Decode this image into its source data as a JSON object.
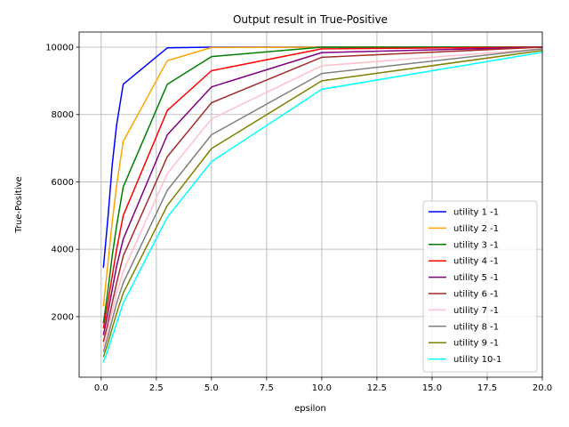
{
  "chart_data": {
    "type": "line",
    "title": "Output result in True-Positive",
    "xlabel": "epsilon",
    "ylabel": "True-Positive",
    "xlim": [
      -1.0,
      20.0
    ],
    "ylim": [
      200,
      10450
    ],
    "xticks": [
      0.0,
      2.5,
      5.0,
      7.5,
      10.0,
      12.5,
      15.0,
      17.5,
      20.0
    ],
    "xtick_labels": [
      "0.0",
      "2.5",
      "5.0",
      "7.5",
      "10.0",
      "12.5",
      "15.0",
      "17.5",
      "20.0"
    ],
    "yticks": [
      2000,
      4000,
      6000,
      8000,
      10000
    ],
    "ytick_labels": [
      "2000",
      "4000",
      "6000",
      "8000",
      "10000"
    ],
    "grid": true,
    "legend_position": "lower-right",
    "x": [
      0.1,
      0.3,
      0.5,
      0.7,
      1.0,
      3.0,
      5.0,
      10.0,
      20.0
    ],
    "series": [
      {
        "name": "utility 1 -1",
        "color": "#0000ff",
        "values": [
          3450,
          4900,
          6500,
          7700,
          8900,
          9980,
          10000,
          10000,
          10000
        ]
      },
      {
        "name": "utility 2 -1",
        "color": "#ffa500",
        "values": [
          2300,
          3550,
          4800,
          5900,
          7200,
          9600,
          9990,
          10000,
          10000
        ]
      },
      {
        "name": "utility 3 -1",
        "color": "#008000",
        "values": [
          1800,
          2750,
          3800,
          4700,
          5850,
          8900,
          9720,
          10000,
          10000
        ]
      },
      {
        "name": "utility 4 -1",
        "color": "#ff0000",
        "values": [
          1650,
          2400,
          3200,
          4000,
          5000,
          8120,
          9300,
          9950,
          10000
        ]
      },
      {
        "name": "utility 5 -1",
        "color": "#800080",
        "values": [
          1450,
          2100,
          2800,
          3500,
          4300,
          7400,
          8820,
          9840,
          10000
        ]
      },
      {
        "name": "utility 6 -1",
        "color": "#a52a2a",
        "values": [
          1250,
          1800,
          2400,
          3000,
          3800,
          6750,
          8350,
          9700,
          10000
        ]
      },
      {
        "name": "utility 7 -1",
        "color": "#ffc0cb",
        "values": [
          1100,
          1600,
          2150,
          2700,
          3350,
          6250,
          7870,
          9450,
          9950
        ]
      },
      {
        "name": "utility 8 -1",
        "color": "#808080",
        "values": [
          950,
          1400,
          1900,
          2400,
          3000,
          5750,
          7400,
          9220,
          9950
        ]
      },
      {
        "name": "utility 9 -1",
        "color": "#808000",
        "values": [
          800,
          1200,
          1650,
          2100,
          2700,
          5300,
          6990,
          9000,
          9900
        ]
      },
      {
        "name": "utility 10-1",
        "color": "#00ffff",
        "values": [
          650,
          1000,
          1400,
          1800,
          2400,
          4950,
          6600,
          8750,
          9850
        ]
      }
    ]
  }
}
